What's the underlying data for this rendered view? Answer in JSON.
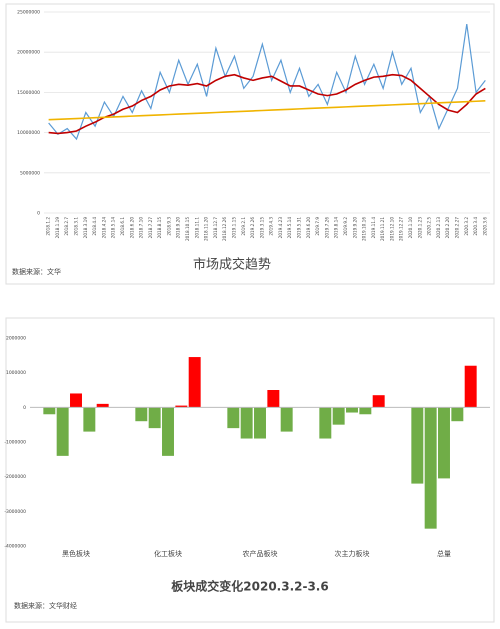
{
  "chart_data": [
    {
      "type": "line",
      "title": "市场成交趋势",
      "source": "数据来源：文华",
      "categories": [
        "2018.1.2",
        "2018.1.19",
        "2018.2.7",
        "2018.3.1",
        "2018.3.19",
        "2018.4.4",
        "2018.4.24",
        "2018.5.14",
        "2018.6.1",
        "2018.6.20",
        "2018.7.10",
        "2018.7.27",
        "2018.8.15",
        "2018.9.3",
        "2018.9.20",
        "2018.10.15",
        "2018.11.1",
        "2018.11.20",
        "2018.12.7",
        "2018.12.26",
        "2019.1.15",
        "2019.2.1",
        "2019.2.26",
        "2019.3.15",
        "2019.4.3",
        "2019.4.23",
        "2019.5.14",
        "2019.5.31",
        "2019.6.20",
        "2019.7.9",
        "2019.7.26",
        "2019.8.14",
        "2019.9.2",
        "2019.9.20",
        "2019.10.16",
        "2019.11.4",
        "2019.11.21",
        "2019.12.10",
        "2019.12.27",
        "2020.1.10",
        "2020.1.23",
        "2020.2.5",
        "2020.2.13",
        "2020.2.20",
        "2020.2.27",
        "2020.3.2",
        "2020.3.4",
        "2020.3.6"
      ],
      "series": [
        {
          "color": "#5b9bd5",
          "values": [
            11200000,
            9800000,
            10500000,
            9200000,
            12500000,
            10800000,
            13800000,
            12000000,
            14500000,
            12500000,
            15200000,
            13000000,
            17500000,
            15000000,
            19000000,
            16000000,
            18500000,
            14500000,
            20500000,
            17000000,
            19500000,
            15500000,
            17000000,
            21000000,
            16500000,
            19000000,
            15000000,
            18000000,
            14500000,
            16000000,
            13500000,
            17500000,
            15000000,
            19500000,
            16000000,
            18500000,
            15500000,
            20000000,
            16000000,
            18000000,
            12500000,
            14500000,
            10500000,
            13000000,
            15500000,
            23500000,
            15000000,
            16500000
          ]
        },
        {
          "color": "#c00000",
          "values": [
            10000000,
            9900000,
            10000000,
            10200000,
            10800000,
            11300000,
            11900000,
            12300000,
            12900000,
            13300000,
            14000000,
            14500000,
            15300000,
            15800000,
            16000000,
            15900000,
            16100000,
            15800000,
            16500000,
            17000000,
            17200000,
            16800000,
            16500000,
            16800000,
            17000000,
            16400000,
            15800000,
            15800000,
            15300000,
            14800000,
            14600000,
            14800000,
            15300000,
            16000000,
            16500000,
            16900000,
            17000000,
            17200000,
            17100000,
            16500000,
            15500000,
            14500000,
            13500000,
            12800000,
            12500000,
            13500000,
            14800000,
            15500000
          ]
        },
        {
          "color": "#f0b400",
          "values": [
            11600000,
            11650000,
            11700000,
            11750000,
            11800000,
            11850000,
            11900000,
            11950000,
            12000000,
            12050000,
            12100000,
            12150000,
            12200000,
            12250000,
            12300000,
            12350000,
            12400000,
            12450000,
            12500000,
            12550000,
            12600000,
            12650000,
            12700000,
            12750000,
            12800000,
            12850000,
            12900000,
            12950000,
            13000000,
            13050000,
            13100000,
            13150000,
            13200000,
            13250000,
            13300000,
            13350000,
            13400000,
            13450000,
            13500000,
            13550000,
            13600000,
            13650000,
            13700000,
            13750000,
            13800000,
            13850000,
            13900000,
            13950000
          ]
        }
      ],
      "ylim": [
        0,
        25000000
      ],
      "yticks": [
        0,
        5000000,
        10000000,
        15000000,
        20000000,
        25000000
      ],
      "grid": true
    },
    {
      "type": "bar",
      "title": "板块成交变化2020.3.2-3.6",
      "source": "数据来源：文华财经",
      "categories": [
        "黑色板块",
        "化工板块",
        "农产品板块",
        "次主力板块",
        "总量"
      ],
      "series": [
        {
          "values": [
            -200000,
            -400000,
            -600000,
            -900000,
            -2200000
          ]
        },
        {
          "values": [
            -1400000,
            -600000,
            -900000,
            -500000,
            -3500000
          ]
        },
        {
          "values": [
            400000,
            -1400000,
            -900000,
            -150000,
            -2050000
          ]
        },
        {
          "values": [
            -700000,
            50000,
            500000,
            -200000,
            -400000
          ]
        },
        {
          "values": [
            100000,
            1450000,
            -700000,
            350000,
            1200000
          ]
        }
      ],
      "positive_color": "#ff0000",
      "negative_color": "#70ad47",
      "ylim": [
        -4000000,
        2000000
      ],
      "yticks": [
        -4000000,
        -3000000,
        -2000000,
        -1000000,
        0,
        1000000,
        2000000
      ],
      "grid": false
    }
  ]
}
